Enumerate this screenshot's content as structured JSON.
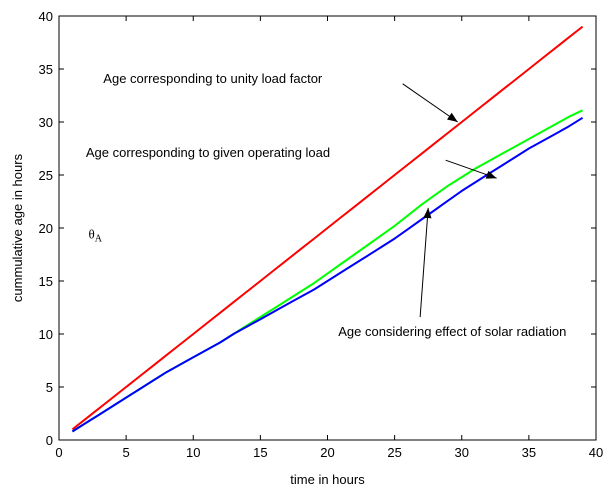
{
  "chart_data": {
    "type": "line",
    "title": "",
    "xlabel": "time in hours",
    "ylabel": "cummulative age in hours",
    "xlim": [
      0,
      40
    ],
    "ylim": [
      0,
      40
    ],
    "xticks": [
      0,
      5,
      10,
      15,
      20,
      25,
      30,
      35,
      40
    ],
    "yticks": [
      0,
      5,
      10,
      15,
      20,
      25,
      30,
      35,
      40
    ],
    "grid": false,
    "x": [
      1,
      2,
      3,
      4,
      5,
      6,
      7,
      8,
      9,
      10,
      11,
      12,
      13,
      14,
      15,
      16,
      17,
      18,
      19,
      20,
      21,
      22,
      23,
      24,
      25,
      26,
      27,
      28,
      29,
      30,
      31,
      32,
      33,
      34,
      35,
      36,
      37,
      38,
      39
    ],
    "series": [
      {
        "color": "#ff0000",
        "values": [
          1.0,
          2.0,
          3.0,
          4.0,
          5.0,
          6.0,
          7.0,
          8.0,
          9.0,
          10.0,
          11.0,
          12.0,
          13.0,
          14.0,
          15.0,
          16.0,
          17.0,
          18.0,
          19.0,
          20.0,
          21.0,
          22.0,
          23.0,
          24.0,
          25.0,
          26.0,
          27.0,
          28.0,
          29.0,
          30.0,
          31.0,
          32.0,
          33.0,
          34.0,
          35.0,
          36.0,
          37.0,
          38.0,
          39.0
        ]
      },
      {
        "color": "#00ff00",
        "values": [
          0.8,
          1.6,
          2.4,
          3.2,
          4.0,
          4.8,
          5.6,
          6.4,
          7.1,
          7.8,
          8.5,
          9.2,
          10.0,
          10.8,
          11.6,
          12.4,
          13.2,
          14.0,
          14.8,
          15.7,
          16.6,
          17.5,
          18.4,
          19.3,
          20.2,
          21.2,
          22.2,
          23.1,
          24.0,
          24.8,
          25.6,
          26.3,
          27.0,
          27.7,
          28.4,
          29.1,
          29.8,
          30.5,
          31.1
        ]
      },
      {
        "color": "#0000ff",
        "values": [
          0.8,
          1.6,
          2.4,
          3.2,
          4.0,
          4.8,
          5.6,
          6.4,
          7.1,
          7.8,
          8.5,
          9.2,
          10.0,
          10.7,
          11.4,
          12.1,
          12.8,
          13.5,
          14.2,
          15.0,
          15.8,
          16.6,
          17.4,
          18.2,
          19.0,
          19.9,
          20.8,
          21.7,
          22.6,
          23.5,
          24.3,
          25.1,
          25.9,
          26.7,
          27.5,
          28.2,
          28.9,
          29.6,
          30.4
        ]
      }
    ],
    "annotations": [
      {
        "text": "Age corresponding to unity load factor",
        "label_x": 3.3,
        "label_y": 33.7,
        "tail_x": 25.6,
        "tail_y": 33.6,
        "head_x": 29.7,
        "head_y": 30.0
      },
      {
        "text": "Age corresponding to given operating load",
        "label_x": 2.0,
        "label_y": 26.7,
        "tail_x": 28.8,
        "tail_y": 26.4,
        "head_x": 32.6,
        "head_y": 24.7
      },
      {
        "text": "Age considering effect of solar radiation",
        "label_x": 20.8,
        "label_y": 9.8,
        "tail_x": 26.9,
        "tail_y": 11.6,
        "head_x": 27.5,
        "head_y": 21.9
      }
    ],
    "theta_label": {
      "text": "θ",
      "subscript": "A",
      "x": 2.2,
      "y": 19.0
    }
  }
}
